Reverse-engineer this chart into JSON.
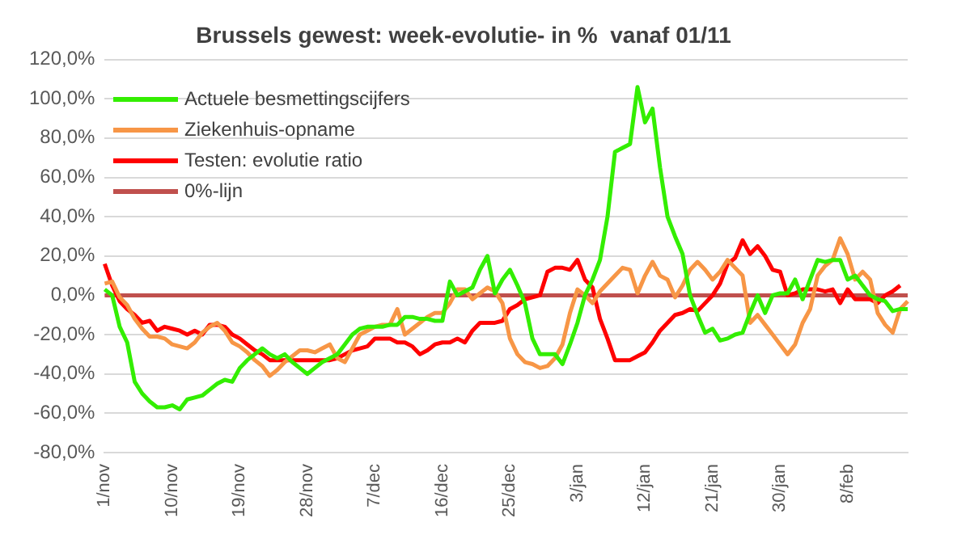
{
  "chart_data": {
    "type": "line",
    "title": "Brussels gewest: week-evolutie- in %  vanaf 01/11",
    "categories": [
      "1/nov",
      null,
      null,
      null,
      null,
      null,
      null,
      null,
      null,
      "10/nov",
      null,
      null,
      null,
      null,
      null,
      null,
      null,
      null,
      "19/nov",
      null,
      null,
      null,
      null,
      null,
      null,
      null,
      null,
      "28/nov",
      null,
      null,
      null,
      null,
      null,
      null,
      null,
      null,
      "7/dec",
      null,
      null,
      null,
      null,
      null,
      null,
      null,
      null,
      "16/dec",
      null,
      null,
      null,
      null,
      null,
      null,
      null,
      null,
      "25/dec",
      null,
      null,
      null,
      null,
      null,
      null,
      null,
      null,
      "3/jan",
      null,
      null,
      null,
      null,
      null,
      null,
      null,
      null,
      "12/jan",
      null,
      null,
      null,
      null,
      null,
      null,
      null,
      null,
      "21/jan",
      null,
      null,
      null,
      null,
      null,
      null,
      null,
      null,
      "30/jan",
      null,
      null,
      null,
      null,
      null,
      null,
      null,
      null,
      "8/feb",
      null,
      null,
      null,
      null,
      null,
      null,
      null,
      null
    ],
    "series": [
      {
        "name": "Actuele besmettingscijfers",
        "color": "#33ee00",
        "values": [
          3,
          0,
          -16,
          -24,
          -44,
          -50,
          -54,
          -57,
          -57,
          -56,
          -58,
          -53,
          -52,
          -51,
          -48,
          -45,
          -43,
          -44,
          -37,
          -33,
          -30,
          -27,
          -30,
          -32,
          -30,
          -34,
          -37,
          -40,
          -37,
          -34,
          -32,
          -30,
          -25,
          -20,
          -17,
          -16,
          -16,
          -16,
          -15,
          -15,
          -11,
          -11,
          -12,
          -12,
          -13,
          -13,
          7,
          0,
          2,
          4,
          13,
          20,
          1,
          8,
          13,
          5,
          -4,
          -22,
          -30,
          -30,
          -30,
          -35,
          -25,
          -14,
          0,
          8,
          18,
          40,
          73,
          75,
          77,
          106,
          88,
          95,
          65,
          40,
          30,
          21,
          0,
          -10,
          -19,
          -17,
          -23,
          -22,
          -20,
          -19,
          -9,
          0,
          -9,
          0,
          1,
          1,
          8,
          -2,
          8,
          18,
          17,
          18,
          18,
          8,
          10,
          5,
          0,
          -2,
          -3,
          -8,
          -7,
          -7
        ]
      },
      {
        "name": "Ziekenhuis-opname",
        "color": "#f79646",
        "values": [
          6,
          7,
          -1,
          -5,
          -12,
          -17,
          -21,
          -21,
          -22,
          -25,
          -26,
          -27,
          -24,
          -19,
          -16,
          -14,
          -18,
          -24,
          -26,
          -29,
          -33,
          -36,
          -41,
          -38,
          -34,
          -31,
          -28,
          -28,
          -29,
          -27,
          -25,
          -32,
          -34,
          -27,
          -20,
          -18,
          -16,
          -15,
          -15,
          -7,
          -20,
          -17,
          -14,
          -11,
          -9,
          -9,
          -4,
          3,
          3,
          -2,
          1,
          4,
          2,
          -4,
          -22,
          -30,
          -34,
          -35,
          -37,
          -36,
          -32,
          -25,
          -9,
          3,
          0,
          -4,
          2,
          6,
          10,
          14,
          13,
          1,
          10,
          17,
          10,
          8,
          -1,
          5,
          13,
          17,
          13,
          8,
          12,
          18,
          14,
          10,
          -14,
          -10,
          -15,
          -20,
          -25,
          -30,
          -25,
          -14,
          -7,
          10,
          15,
          18,
          29,
          21,
          8,
          12,
          8,
          -9,
          -15,
          -19,
          -7,
          -3
        ]
      },
      {
        "name": "Testen: evolutie ratio",
        "color": "#ff0000",
        "values": [
          16,
          5,
          -3,
          -7,
          -10,
          -14,
          -13,
          -18,
          -16,
          -17,
          -18,
          -20,
          -18,
          -20,
          -15,
          -15,
          -16,
          -20,
          -22,
          -25,
          -28,
          -30,
          -33,
          -33,
          -33,
          -33,
          -33,
          -33,
          -33,
          -33,
          -33,
          -32,
          -30,
          -28,
          -27,
          -26,
          -22,
          -22,
          -22,
          -24,
          -24,
          -26,
          -30,
          -28,
          -25,
          -24,
          -24,
          -22,
          -24,
          -18,
          -14,
          -14,
          -14,
          -13,
          -7,
          -5,
          -2,
          -1,
          0,
          12,
          14,
          14,
          13,
          18,
          8,
          4,
          -12,
          -22,
          -33,
          -33,
          -33,
          -31,
          -29,
          -24,
          -18,
          -14,
          -10,
          -9,
          -7,
          -8,
          -4,
          0,
          6,
          16,
          19,
          28,
          21,
          25,
          20,
          13,
          12,
          0,
          1,
          3,
          3,
          3,
          2,
          3,
          -4,
          3,
          -2,
          -2,
          -2,
          -4,
          0,
          2,
          5,
          null
        ]
      },
      {
        "name": "0%-lijn",
        "color": "#c0504d",
        "values": [
          0,
          0,
          0,
          0,
          0,
          0,
          0,
          0,
          0,
          0,
          0,
          0,
          0,
          0,
          0,
          0,
          0,
          0,
          0,
          0,
          0,
          0,
          0,
          0,
          0,
          0,
          0,
          0,
          0,
          0,
          0,
          0,
          0,
          0,
          0,
          0,
          0,
          0,
          0,
          0,
          0,
          0,
          0,
          0,
          0,
          0,
          0,
          0,
          0,
          0,
          0,
          0,
          0,
          0,
          0,
          0,
          0,
          0,
          0,
          0,
          0,
          0,
          0,
          0,
          0,
          0,
          0,
          0,
          0,
          0,
          0,
          0,
          0,
          0,
          0,
          0,
          0,
          0,
          0,
          0,
          0,
          0,
          0,
          0,
          0,
          0,
          0,
          0,
          0,
          0,
          0,
          0,
          0,
          0,
          0,
          0,
          0,
          0,
          0,
          0,
          0,
          0,
          0,
          0,
          0,
          0,
          0,
          0
        ]
      }
    ],
    "ylim": [
      -80,
      120
    ],
    "yticks": [
      {
        "value": -80,
        "label": "-80,0%"
      },
      {
        "value": -60,
        "label": "-60,0%"
      },
      {
        "value": -40,
        "label": "-40,0%"
      },
      {
        "value": -20,
        "label": "-20,0%"
      },
      {
        "value": 0,
        "label": "0,0%"
      },
      {
        "value": 20,
        "label": "20,0%"
      },
      {
        "value": 40,
        "label": "40,0%"
      },
      {
        "value": 60,
        "label": "60,0%"
      },
      {
        "value": 80,
        "label": "80,0%"
      },
      {
        "value": 100,
        "label": "100,0%"
      },
      {
        "value": 120,
        "label": "120,0%"
      }
    ],
    "grid": "y",
    "legend": "top left",
    "marker": "none",
    "line_style": "solid"
  }
}
